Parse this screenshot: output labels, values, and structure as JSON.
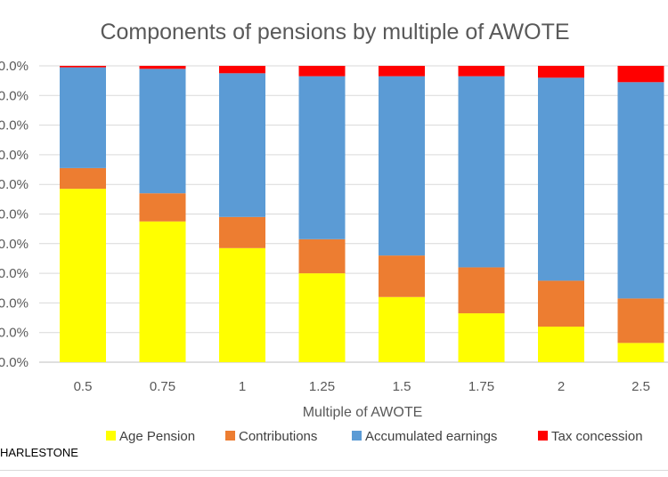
{
  "chart_data": {
    "type": "bar",
    "stacked": true,
    "normalized": true,
    "title": "Components of pensions by multiple of AWOTE",
    "xlabel": "Multiple of AWOTE",
    "ylabel": "",
    "ylim": [
      0,
      100
    ],
    "ytick_labels": [
      "0.0%",
      "0.0%",
      "0.0%",
      "0.0%",
      "0.0%",
      "0.0%",
      "0.0%",
      "0.0%",
      "0.0%",
      "0.0%",
      "0.0%"
    ],
    "categories": [
      "0.5",
      "0.75",
      "1",
      "1.25",
      "1.5",
      "1.75",
      "2",
      "2.5"
    ],
    "legend_position": "bottom",
    "series": [
      {
        "name": "Age Pension",
        "color": "#ffff00",
        "values": [
          58.5,
          47.5,
          38.5,
          30.0,
          22.0,
          16.5,
          12.0,
          6.5
        ]
      },
      {
        "name": "Contributions",
        "color": "#ed7d31",
        "values": [
          7.0,
          9.5,
          10.5,
          11.5,
          14.0,
          15.5,
          15.5,
          15.0
        ]
      },
      {
        "name": "Accumulated earnings",
        "color": "#5b9bd5",
        "values": [
          34.0,
          42.0,
          48.5,
          55.0,
          60.5,
          64.5,
          68.5,
          73.0
        ]
      },
      {
        "name": "Tax concession",
        "color": "#ff0000",
        "values": [
          0.5,
          1.0,
          2.5,
          3.5,
          3.5,
          3.5,
          4.0,
          5.5
        ]
      }
    ]
  },
  "footer": {
    "source": "HARLESTONE"
  }
}
